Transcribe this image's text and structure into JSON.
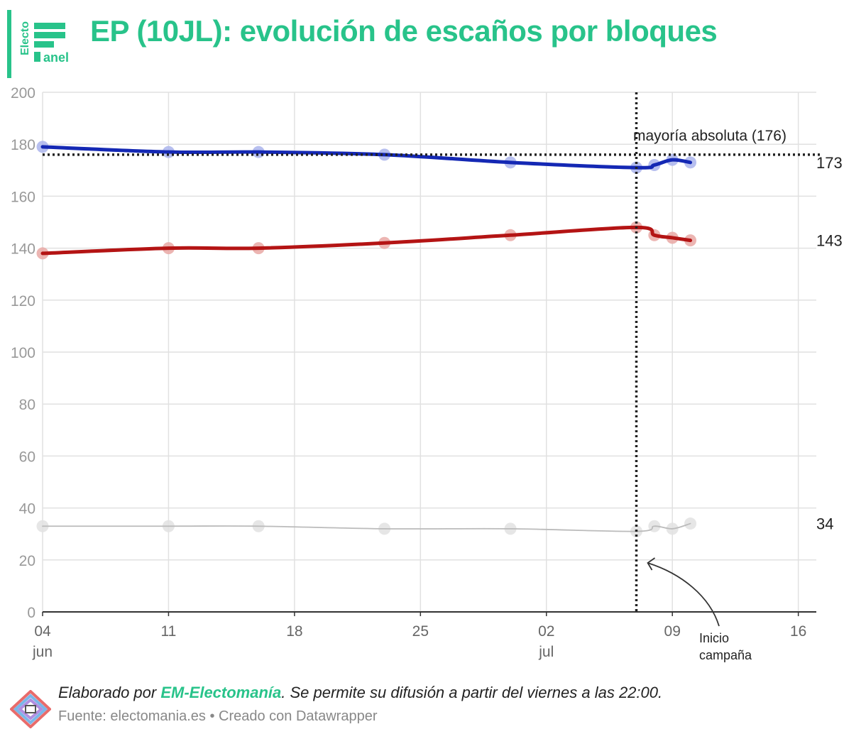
{
  "header": {
    "title": "EP (10JL): evolución de escaños por bloques",
    "logo_text_top": "Electo",
    "logo_text_bottom": "anel"
  },
  "chart_data": {
    "type": "line",
    "title": "EP (10JL): evolución de escaños por bloques",
    "xlabel": "",
    "ylabel": "",
    "ylim": [
      0,
      200
    ],
    "yticks": [
      0,
      20,
      40,
      60,
      80,
      100,
      120,
      140,
      160,
      180,
      200
    ],
    "xlim": [
      "2024-06-04",
      "2024-07-17"
    ],
    "xticks": [
      {
        "date": "2024-06-04",
        "label": "04",
        "sublabel": "jun"
      },
      {
        "date": "2024-06-11",
        "label": "11",
        "sublabel": ""
      },
      {
        "date": "2024-06-18",
        "label": "18",
        "sublabel": ""
      },
      {
        "date": "2024-06-25",
        "label": "25",
        "sublabel": ""
      },
      {
        "date": "2024-07-02",
        "label": "02",
        "sublabel": "jul"
      },
      {
        "date": "2024-07-09",
        "label": "09",
        "sublabel": ""
      },
      {
        "date": "2024-07-16",
        "label": "16",
        "sublabel": ""
      }
    ],
    "grid": true,
    "x": [
      "2024-06-04",
      "2024-06-11",
      "2024-06-16",
      "2024-06-23",
      "2024-06-30",
      "2024-07-07",
      "2024-07-08",
      "2024-07-09",
      "2024-07-10"
    ],
    "series": [
      {
        "color": "#1428b4",
        "dot_color": "#aab4ec",
        "end_label": "173",
        "values": [
          179,
          177,
          177,
          176,
          173,
          171,
          172,
          174,
          173
        ],
        "thickness": "bold"
      },
      {
        "color": "#b41414",
        "dot_color": "#e9a8a4",
        "end_label": "143",
        "values": [
          138,
          140,
          140,
          142,
          145,
          148,
          145,
          144,
          143
        ],
        "thickness": "bold"
      },
      {
        "color": "#bbbbbb",
        "dot_color": "#e2e2e2",
        "end_label": "34",
        "values": [
          33,
          33,
          33,
          32,
          32,
          31,
          33,
          32,
          34
        ],
        "thickness": "thin"
      }
    ],
    "reference_lines": [
      {
        "axis": "y",
        "value": 176,
        "label": "mayoría absoluta (176)",
        "style": "dotted"
      },
      {
        "axis": "x",
        "value": "2024-07-07",
        "label": "",
        "style": "dotted"
      }
    ],
    "annotations": [
      {
        "text": "Inicio\ncampaña",
        "line1": "Inicio",
        "line2": "campaña",
        "points_to_date": "2024-07-07"
      }
    ]
  },
  "footer": {
    "credit_prefix": "Elaborado por ",
    "credit_brand": "EM-Electomanía",
    "credit_suffix": ". Se permite su difusión a partir del viernes a las 22:00.",
    "source": "Fuente: electomania.es • Creado con Datawrapper"
  },
  "colors": {
    "accent": "#28c38a",
    "grid": "#e1e1e1",
    "axis": "#333333",
    "tick_text": "#999999"
  }
}
